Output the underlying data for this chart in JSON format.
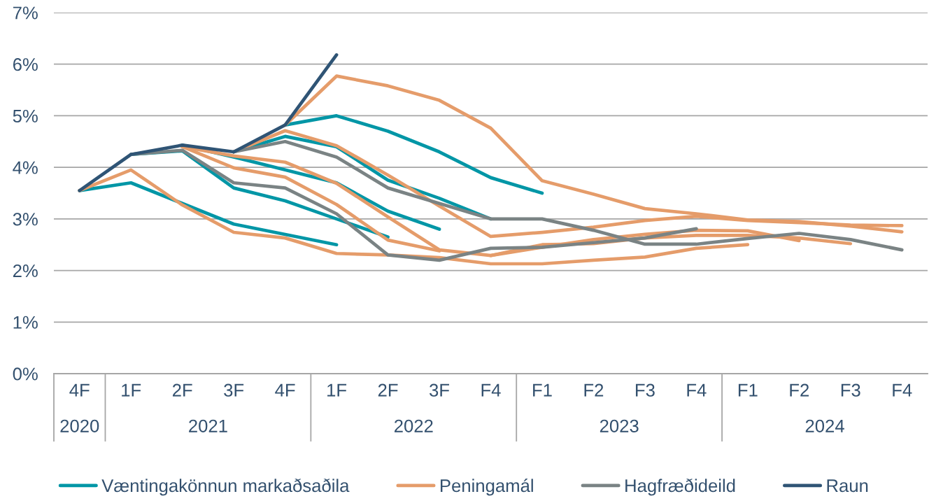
{
  "chart_data": {
    "type": "line",
    "categories": [
      "4F",
      "1F",
      "2F",
      "3F",
      "4F",
      "1F",
      "2F",
      "3F",
      "F4",
      "F1",
      "F2",
      "F3",
      "F4",
      "F1",
      "F2",
      "F3",
      "F4"
    ],
    "ylim": [
      0,
      7
    ],
    "yticks": [
      {
        "value": 0,
        "label": "0%"
      },
      {
        "value": 1,
        "label": "1%"
      },
      {
        "value": 2,
        "label": "2%"
      },
      {
        "value": 3,
        "label": "3%"
      },
      {
        "value": 4,
        "label": "4%"
      },
      {
        "value": 5,
        "label": "5%"
      },
      {
        "value": 6,
        "label": "6%"
      },
      {
        "value": 7,
        "label": "7%"
      }
    ],
    "grid": "y",
    "legend": "bottom",
    "annotations": [
      "2020",
      "2021",
      "2022",
      "2023",
      "2024"
    ],
    "series": [
      {
        "name": "Væntingakönnun markaðsaðila",
        "color": "#0096a6",
        "values": [
          3.55,
          3.7,
          3.3,
          2.9,
          2.7,
          2.5,
          null,
          null,
          null,
          null,
          null,
          null,
          null,
          null,
          null,
          null,
          null
        ]
      },
      {
        "color": "#0096a6",
        "values": [
          null,
          4.25,
          4.32,
          3.6,
          3.35,
          3.0,
          2.65,
          null,
          null,
          null,
          null,
          null,
          null,
          null,
          null,
          null,
          null
        ]
      },
      {
        "color": "#0096a6",
        "values": [
          null,
          null,
          4.43,
          4.2,
          3.95,
          3.7,
          3.15,
          2.8,
          null,
          null,
          null,
          null,
          null,
          null,
          null,
          null,
          null
        ]
      },
      {
        "color": "#0096a6",
        "values": [
          null,
          null,
          null,
          4.3,
          4.6,
          4.4,
          3.75,
          3.4,
          3.0,
          null,
          null,
          null,
          null,
          null,
          null,
          null,
          null
        ]
      },
      {
        "color": "#0096a6",
        "values": [
          null,
          null,
          null,
          null,
          4.82,
          5.0,
          4.7,
          4.3,
          3.8,
          3.5,
          null,
          null,
          null,
          null,
          null,
          null,
          null
        ]
      },
      {
        "name": "Peningamál",
        "color": "#e59c6a",
        "values": [
          3.55,
          3.95,
          3.27,
          2.74,
          2.63,
          2.33,
          2.3,
          2.25,
          2.13,
          2.13,
          2.2,
          2.26,
          2.43,
          2.5,
          null,
          null,
          null
        ]
      },
      {
        "color": "#e59c6a",
        "values": [
          null,
          null,
          4.4,
          3.99,
          3.81,
          3.28,
          2.59,
          2.38,
          null,
          null,
          null,
          null,
          null,
          null,
          null,
          null,
          null
        ]
      },
      {
        "color": "#e59c6a",
        "values": [
          null,
          null,
          4.4,
          4.22,
          4.1,
          3.69,
          3.04,
          2.4,
          2.29,
          2.45,
          2.6,
          2.7,
          2.78,
          2.77,
          2.58,
          null,
          null
        ]
      },
      {
        "color": "#e59c6a",
        "values": [
          null,
          null,
          null,
          4.3,
          4.71,
          4.42,
          3.85,
          3.25,
          2.66,
          2.74,
          2.84,
          2.97,
          3.05,
          2.97,
          2.93,
          2.88,
          2.87
        ]
      },
      {
        "color": "#e59c6a",
        "values": [
          null,
          null,
          null,
          null,
          4.82,
          5.77,
          5.58,
          5.3,
          4.76,
          3.74,
          3.48,
          3.2,
          3.1,
          2.98,
          2.95,
          2.86,
          2.75
        ]
      },
      {
        "color": "#e59c6a",
        "values": [
          null,
          null,
          null,
          null,
          null,
          null,
          null,
          null,
          2.29,
          2.5,
          2.52,
          2.63,
          2.68,
          2.68,
          2.63,
          2.52,
          null
        ]
      },
      {
        "name": "Hagfræðideild",
        "color": "#7a8384",
        "values": [
          null,
          4.25,
          4.33,
          3.7,
          3.6,
          3.1,
          2.3,
          2.2,
          2.43,
          2.45,
          2.54,
          2.63,
          2.81,
          null,
          null,
          null,
          null
        ]
      },
      {
        "color": "#7a8384",
        "values": [
          null,
          null,
          null,
          4.3,
          4.5,
          4.2,
          3.6,
          3.3,
          3.0,
          3.0,
          2.78,
          2.51,
          2.51,
          2.62,
          2.72,
          2.6,
          2.4
        ]
      },
      {
        "name": "Raun",
        "color": "#2f5475",
        "values": [
          3.55,
          4.25,
          4.43,
          4.3,
          4.82,
          6.18,
          null,
          null,
          null,
          null,
          null,
          null,
          null,
          null,
          null,
          null,
          null
        ]
      }
    ]
  }
}
